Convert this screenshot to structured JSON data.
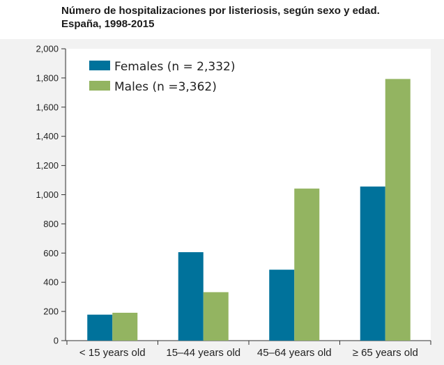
{
  "title": {
    "line1": "Número de hospitalizaciones por listeriosis, según sexo y edad.",
    "line2": "España, 1998-2015"
  },
  "colors": {
    "females": "#00729b",
    "males": "#93b461",
    "panel": "#f2f2f2",
    "plot": "#ffffff"
  },
  "chart_data": {
    "type": "bar",
    "title": "Número de hospitalizaciones por listeriosis, según sexo y edad. España, 1998-2015",
    "xlabel": "",
    "ylabel": "",
    "categories": [
      "< 15 years old",
      "15–44 years old",
      "45–64 years old",
      "≥ 65 years old"
    ],
    "series": [
      {
        "name": "Females (n = 2,332)",
        "values": [
          178,
          606,
          486,
          1056
        ]
      },
      {
        "name": "Males (n =3,362)",
        "values": [
          191,
          332,
          1042,
          1793
        ]
      }
    ],
    "ylim": [
      0,
      2000
    ],
    "yticks": [
      0,
      200,
      400,
      600,
      800,
      1000,
      1200,
      1400,
      1600,
      1800,
      2000
    ],
    "ytick_labels": [
      "0",
      "200",
      "400",
      "600",
      "800",
      "1,000",
      "1,200",
      "1,400",
      "1,600",
      "1,800",
      "2,000"
    ],
    "legend_position": "top-left",
    "grid": false
  }
}
